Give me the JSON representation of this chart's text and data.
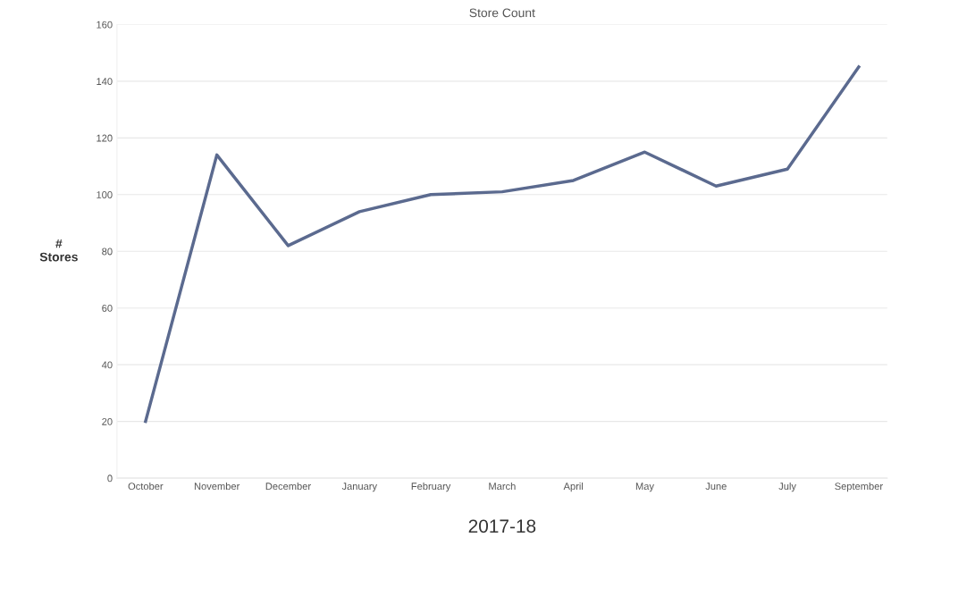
{
  "chart_data": {
    "type": "line",
    "title": "Store Count",
    "xlabel": "2017-18",
    "ylabel": "#\nStores",
    "categories": [
      "October",
      "November",
      "December",
      "January",
      "February",
      "March",
      "April",
      "May",
      "June",
      "July",
      "September"
    ],
    "series": [
      {
        "color": "#5b6a8f",
        "values": [
          20,
          114,
          82,
          94,
          100,
          101,
          105,
          115,
          103,
          109,
          145
        ]
      }
    ],
    "ylim": [
      0,
      160
    ],
    "yticks": [
      0,
      20,
      40,
      60,
      80,
      100,
      120,
      140,
      160
    ],
    "grid": "y",
    "marker": "none",
    "line_style": "solid",
    "legend": false
  }
}
